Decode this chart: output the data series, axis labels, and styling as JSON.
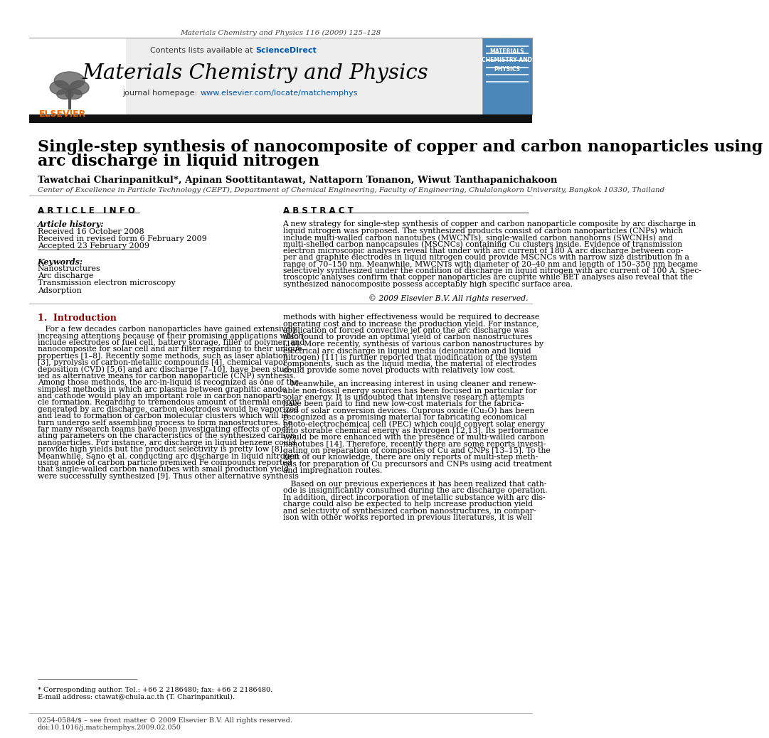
{
  "journal_header": "Materials Chemistry and Physics 116 (2009) 125–128",
  "contents_text": "Contents lists available at ",
  "sciencedirect_text": "ScienceDirect",
  "journal_title": "Materials Chemistry and Physics",
  "homepage_label": "journal homepage: ",
  "homepage_url": "www.elsevier.com/locate/matchemphys",
  "paper_title_line1": "Single-step synthesis of nanocomposite of copper and carbon nanoparticles using",
  "paper_title_line2": "arc discharge in liquid nitrogen",
  "authors": "Tawatchai Charinpanitkul*, Apinan Soottitantawat, Nattaporn Tonanon, Wiwut Tanthapanichakoon",
  "affiliation": "Center of Excellence in Particle Technology (CEPT), Department of Chemical Engineering, Faculty of Engineering, Chulalongkorn University, Bangkok 10330, Thailand",
  "article_info_header": "A R T I C L E   I N F O",
  "abstract_header": "A B S T R A C T",
  "article_history_label": "Article history:",
  "received1": "Received 16 October 2008",
  "received2": "Received in revised form 6 February 2009",
  "accepted": "Accepted 23 February 2009",
  "keywords_label": "Keywords:",
  "keywords": [
    "Nanostructures",
    "Arc discharge",
    "Transmission electron microscopy",
    "Adsorption"
  ],
  "abstract_lines": [
    "A new strategy for single-step synthesis of copper and carbon nanoparticle composite by arc discharge in",
    "liquid nitrogen was proposed. The synthesized products consist of carbon nanoparticles (CNPs) which",
    "include multi-walled carbon nanotubes (MWCNTs), single-walled carbon nanohorns (SWCNHs) and",
    "multi-shelled carbon nanocapsules (MSCNCs) containing Cu clusters inside. Evidence of transmission",
    "electron microscopic analyses reveal that under with arc current of 180 A arc discharge between cop-",
    "per and graphite electrodes in liquid nitrogen could provide MSCNCs with narrow size distribution in a",
    "range of 70–150 nm. Meanwhile, MWCNTs with diameter of 20–40 nm and length of 150–350 nm became",
    "selectively synthesized under the condition of discharge in liquid nitrogen with arc current of 100 A. Spec-",
    "troscopic analyses confirm that copper nanoparticles are cuprite while BET analyses also reveal that the",
    "synthesized nanocomposite possess acceptably high specific surface area."
  ],
  "copyright": "© 2009 Elsevier B.V. All rights reserved.",
  "intro_header": "1.  Introduction",
  "intro_left_lines": [
    "   For a few decades carbon nanoparticles have gained extensively",
    "increasing attentions because of their promising applications which",
    "include electrodes of fuel cell, battery storage, filler of polymer, and",
    "nanocomposite for solar cell and air filter regarding to their unique",
    "properties [1–8]. Recently some methods, such as laser ablation",
    "[3], pyrolysis of carbon-metallic compounds [4], chemical vapor",
    "deposition (CVD) [5,6] and arc discharge [7–10], have been stud-",
    "ied as alternative means for carbon nanoparticle (CNP) synthesis.",
    "Among those methods, the arc-in-liquid is recognized as one of the",
    "simplest methods in which arc plasma between graphitic anode",
    "and cathode would play an important role in carbon nanoparti-",
    "cle formation. Regarding to tremendous amount of thermal energy",
    "generated by arc discharge, carbon electrodes would be vaporized",
    "and lead to formation of carbon molecular clusters which will in",
    "turn undergo self assembling process to form nanostructures. So",
    "far many research teams have been investigating effects of oper-",
    "ating parameters on the characteristics of the synthesized carbon",
    "nanoparticles. For instance, arc discharge in liquid benzene could",
    "provide high yields but the product selectivity is pretty low [8].",
    "Meanwhile, Sano et al. conducting arc discharge in liquid nitrogen",
    "using anode of carbon particle premixed Fe compounds reported",
    "that single-walled carbon nanotubes with small production yield",
    "were successfully synthesized [9]. Thus other alternative synthesis"
  ],
  "intro_right_lines": [
    "methods with higher effectiveness would be required to decrease",
    "operating cost and to increase the production yield. For instance,",
    "application of forced convective jet onto the arc discharge was",
    "also found to provide an optimal yield of carbon nanostructures",
    "[10]. More recently, synthesis of various carbon nanostructures by",
    "electrical arc discharge in liquid media (deionization and liquid",
    "nitrogen) [11] is further reported that modification of the system",
    "components, such as the liquid media, the material of electrodes",
    "could provide some novel products with relatively low cost.",
    "",
    "   Meanwhile, an increasing interest in using cleaner and renew-",
    "able non-fossil energy sources has been focused in particular for",
    "solar energy. It is undoubted that intensive research attempts",
    "have been paid to find new low-cost materials for the fabrica-",
    "tion of solar conversion devices. Cuprous oxide (Cu₂O) has been",
    "recognized as a promising material for fabricating economical",
    "photo-electrochemical cell (PEC) which could convert solar energy",
    "into storable chemical energy as hydrogen [12,13]. Its performance",
    "would be more enhanced with the presence of multi-walled carbon",
    "nanotubes [14]. Therefore, recently there are some reports investi-",
    "gating on preparation of composites of Cu and CNPs [13–15]. To the",
    "best of our knowledge, there are only reports of multi-step meth-",
    "ods for preparation of Cu precursors and CNPs using acid treatment",
    "and impregnation routes.",
    "",
    "   Based on our previous experiences it has been realized that cath-",
    "ode is insignificantly consumed during the arc discharge operation.",
    "In addition, direct incorporation of metallic substance with arc dis-",
    "charge could also be expected to help increase production yield",
    "and selectivity of synthesized carbon nanostructures, in compar-",
    "ison with other works reported in previous literatures, it is well"
  ],
  "footnote_line1": "* Corresponding author. Tel.: +66 2 2186480; fax: +66 2 2186480.",
  "footnote_line2": "E-mail address: ctawat@chula.ac.th (T. Charinpanitkul).",
  "footer_left": "0254-0584/$ – see front matter © 2009 Elsevier B.V. All rights reserved.",
  "footer_doi": "doi:10.1016/j.matchemphys.2009.02.050",
  "bg_color": "#ffffff",
  "gray_header_bg": "#eeeeee",
  "black_bar_color": "#111111",
  "journal_cover_bg": "#4a86b8",
  "text_color": "#000000",
  "link_color": "#0055aa",
  "elsevier_orange": "#ee6600"
}
